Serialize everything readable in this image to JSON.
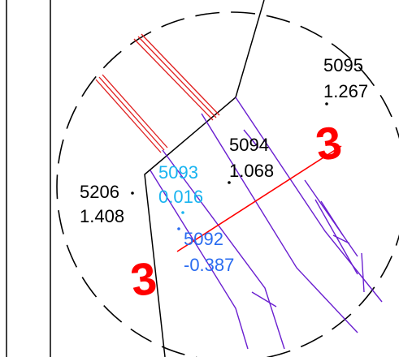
{
  "colors": {
    "background": "#ffffff",
    "linework": "#000000",
    "section_line": "#ff0000",
    "parcel_lines": "#6a1fd0",
    "label_cyan": "#19b4f0",
    "label_blue": "#2a6cf0",
    "hatch_red": "#e02020"
  },
  "section_mark": {
    "top_symbol": "3",
    "bottom_symbol": "3"
  },
  "survey_points": [
    {
      "id": "5095",
      "elevation": "1.267",
      "color_key": "label_black"
    },
    {
      "id": "5094",
      "elevation": "1.068",
      "color_key": "label_black"
    },
    {
      "id": "5206",
      "elevation": "1.408",
      "color_key": "label_black"
    },
    {
      "id": "5093",
      "elevation": "0.016",
      "color_key": "label_cyan"
    },
    {
      "id": "5092",
      "elevation": "-0.387",
      "color_key": "label_blue"
    }
  ]
}
